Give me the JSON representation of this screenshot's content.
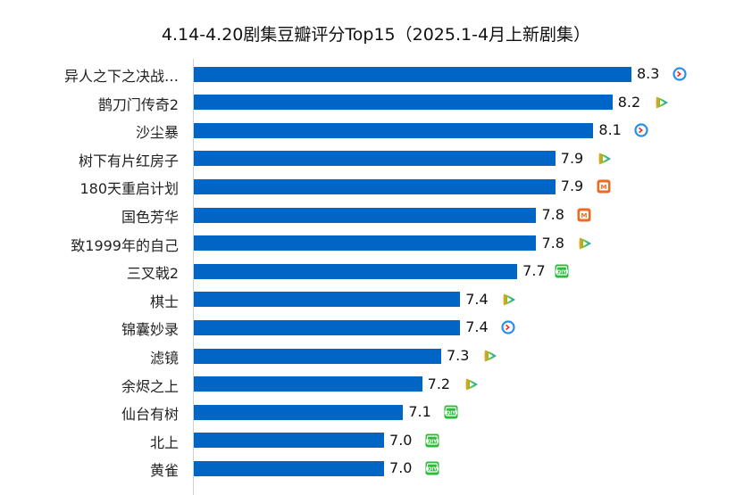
{
  "chart_data": {
    "type": "bar",
    "orientation": "horizontal",
    "title": "4.14-4.20剧集豆瓣评分Top15（2025.1-4月上新剧集）",
    "xlabel": "",
    "ylabel": "",
    "xlim": [
      6.0,
      8.3
    ],
    "grid": false,
    "categories": [
      "异人之下之决战…",
      "鹊刀门传奇2",
      "沙尘暴",
      "树下有片红房子",
      "180天重启计划",
      "国色芳华",
      "致1999年的自己",
      "三叉戟2",
      "棋士",
      "锦囊妙录",
      "滤镜",
      "余烬之上",
      "仙台有树",
      "北上",
      "黄雀"
    ],
    "values": [
      8.3,
      8.2,
      8.1,
      7.9,
      7.9,
      7.8,
      7.8,
      7.7,
      7.4,
      7.4,
      7.3,
      7.2,
      7.1,
      7.0,
      7.0
    ],
    "platform_icons": [
      "youku-icon",
      "tencent-video-icon",
      "youku-icon",
      "tencent-video-icon",
      "mango-tv-icon",
      "mango-tv-icon",
      "tencent-video-icon",
      "iqiyi-icon",
      "tencent-video-icon",
      "youku-icon",
      "tencent-video-icon",
      "tencent-video-icon",
      "iqiyi-icon",
      "iqiyi-icon",
      "iqiyi-icon"
    ],
    "bar_color": "#0066c6"
  }
}
